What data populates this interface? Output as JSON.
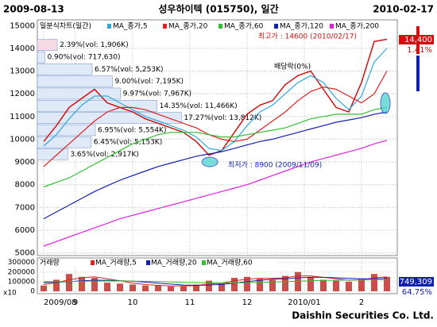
{
  "header": {
    "start_date": "2009-08-13",
    "title": "성우하이텍 (015750), 일간",
    "end_date": "2010-02-17"
  },
  "chart_data": [
    {
      "type": "line",
      "x": [
        0,
        1,
        2,
        3,
        4,
        5,
        6,
        7,
        8,
        9,
        10,
        11,
        12,
        13,
        14,
        15,
        16,
        17,
        18,
        19,
        20,
        21,
        22,
        23,
        24,
        25,
        26,
        27
      ],
      "xlim": [
        -0.5,
        27.5
      ],
      "xticks": [
        {
          "value": 0,
          "label": "2009/08"
        },
        {
          "value": 2.5,
          "label": "9"
        },
        {
          "value": 7,
          "label": "10"
        },
        {
          "value": 11.5,
          "label": "11"
        },
        {
          "value": 16,
          "label": "12"
        },
        {
          "value": 20.5,
          "label": "2010/01"
        },
        {
          "value": 25,
          "label": "2"
        }
      ],
      "ylim": [
        4950,
        15150
      ],
      "yticks": [
        5000,
        6000,
        7000,
        8000,
        9000,
        10000,
        11000,
        12000,
        13000,
        14000,
        15000
      ],
      "grid": true,
      "series": [
        {
          "name": "일분식차트(일간)",
          "color": "#d01010",
          "values": [
            9900,
            10600,
            11400,
            11800,
            12200,
            11600,
            11400,
            11200,
            10900,
            10700,
            10500,
            10300,
            9900,
            9300,
            9500,
            10300,
            11100,
            11500,
            11700,
            12400,
            12800,
            13000,
            12200,
            11400,
            11200,
            12500,
            14300,
            14400
          ]
        },
        {
          "name": "MA_종가,5",
          "color": "#2fa8e0",
          "values": [
            9700,
            10200,
            10900,
            11500,
            11900,
            11900,
            11600,
            11300,
            11000,
            10800,
            10600,
            10400,
            10100,
            9600,
            9500,
            9900,
            10600,
            11200,
            11500,
            12000,
            12500,
            12800,
            12500,
            11800,
            11300,
            11900,
            13400,
            14000
          ]
        },
        {
          "name": "MA_종가,20",
          "color": "#e02020",
          "values": [
            8800,
            9300,
            9800,
            10300,
            10800,
            11200,
            11400,
            11400,
            11300,
            11100,
            10900,
            10700,
            10500,
            10200,
            10000,
            9900,
            10000,
            10400,
            10800,
            11200,
            11700,
            12100,
            12300,
            12200,
            11900,
            11600,
            12000,
            13000
          ]
        },
        {
          "name": "MA_종가,60",
          "color": "#30c030",
          "values": [
            7900,
            8100,
            8300,
            8600,
            8900,
            9200,
            9500,
            9800,
            10000,
            10200,
            10300,
            10300,
            10300,
            10200,
            10100,
            10100,
            10200,
            10300,
            10400,
            10500,
            10700,
            10900,
            11000,
            11100,
            11100,
            11100,
            11300,
            11400
          ]
        },
        {
          "name": "MA_종가,120",
          "color": "#1020b0",
          "values": [
            6500,
            6800,
            7100,
            7400,
            7700,
            7950,
            8200,
            8400,
            8600,
            8800,
            8950,
            9100,
            9250,
            9350,
            9450,
            9600,
            9750,
            9900,
            10000,
            10150,
            10300,
            10450,
            10600,
            10750,
            10850,
            10950,
            11100,
            11200
          ]
        },
        {
          "name": "MA_종가,200",
          "color": "#e020e0",
          "values": [
            5300,
            5500,
            5700,
            5900,
            6100,
            6300,
            6500,
            6650,
            6800,
            6950,
            7100,
            7250,
            7400,
            7550,
            7700,
            7850,
            8000,
            8200,
            8400,
            8600,
            8800,
            9000,
            9150,
            9300,
            9450,
            9600,
            9800,
            9950
          ]
        }
      ],
      "annotations": {
        "high": "최고가 : 14600 (2010/02/17)",
        "low": "최저가 : 8900 (2009/11/09)",
        "dividend": "배당락(0%)"
      },
      "price_tag": "14,400",
      "change_tag": "1.41%"
    },
    {
      "type": "bar",
      "x": [
        0,
        1,
        2,
        3,
        4,
        5,
        6,
        7,
        8,
        9,
        10,
        11,
        12,
        13,
        14,
        15,
        16,
        17,
        18,
        19,
        20,
        21,
        22,
        23,
        24,
        25,
        26,
        27
      ],
      "ylim": [
        0,
        330000
      ],
      "yticks": [
        0,
        100000,
        200000,
        300000
      ],
      "unit_label": "x10",
      "series": [
        {
          "name": "거래량",
          "type": "bar",
          "color": "#c02020",
          "values": [
            60000,
            120000,
            180000,
            150000,
            140000,
            90000,
            80000,
            70000,
            60000,
            60000,
            50000,
            50000,
            70000,
            110000,
            90000,
            140000,
            150000,
            130000,
            120000,
            160000,
            200000,
            150000,
            120000,
            110000,
            100000,
            130000,
            180000,
            150000
          ]
        },
        {
          "name": "MA_거래량,5",
          "type": "line",
          "color": "#e02020",
          "values": [
            70000,
            90000,
            120000,
            140000,
            150000,
            130000,
            110000,
            85000,
            70000,
            62000,
            55000,
            55000,
            60000,
            75000,
            85000,
            110000,
            125000,
            135000,
            135000,
            140000,
            160000,
            160000,
            145000,
            130000,
            115000,
            120000,
            140000,
            150000
          ]
        },
        {
          "name": "MA_거래량,20",
          "type": "line",
          "color": "#1020b0",
          "values": [
            90000,
            95000,
            100000,
            110000,
            115000,
            115000,
            110000,
            105000,
            95000,
            85000,
            75000,
            65000,
            62000,
            65000,
            72000,
            85000,
            100000,
            115000,
            125000,
            130000,
            140000,
            145000,
            145000,
            140000,
            135000,
            130000,
            130000,
            135000
          ]
        },
        {
          "name": "MA_거래량,60",
          "type": "line",
          "color": "#30c030",
          "values": [
            100000,
            100000,
            102000,
            104000,
            106000,
            107000,
            107000,
            106000,
            104000,
            101000,
            97000,
            93000,
            90000,
            88000,
            87000,
            87000,
            89000,
            92000,
            96000,
            100000,
            105000,
            110000,
            113000,
            115000,
            117000,
            118000,
            120000,
            122000
          ]
        }
      ],
      "volume_tag": "749,309",
      "ratio_tag": "64.75%"
    },
    {
      "type": "hbar",
      "levels": [
        14150,
        13610,
        13080,
        12540,
        12010,
        11470,
        10940,
        10400,
        9870,
        9340
      ],
      "values": [
        2.39,
        0.9,
        6.57,
        9.0,
        9.97,
        14.35,
        17.27,
        6.95,
        6.45,
        3.65
      ],
      "value_labels": [
        "2.39%(vol: 1,906K)",
        "0.90%(vol: 717,630)",
        "6.57%(vol: 5,253K)",
        "9.00%(vol: 7,195K)",
        "9.97%(vol: 7,967K)",
        "14.35%(vol: 11,466K)",
        "17.27%(vol: 13,812K)",
        "6.95%(vol: 5,554K)",
        "6.45%(vol: 5,153K)",
        "3.65%(vol: 2,917K)"
      ],
      "color": "#dfe9f7",
      "edge": "#7f9fd0"
    }
  ],
  "footer": "Daishin Securities Co. Ltd."
}
